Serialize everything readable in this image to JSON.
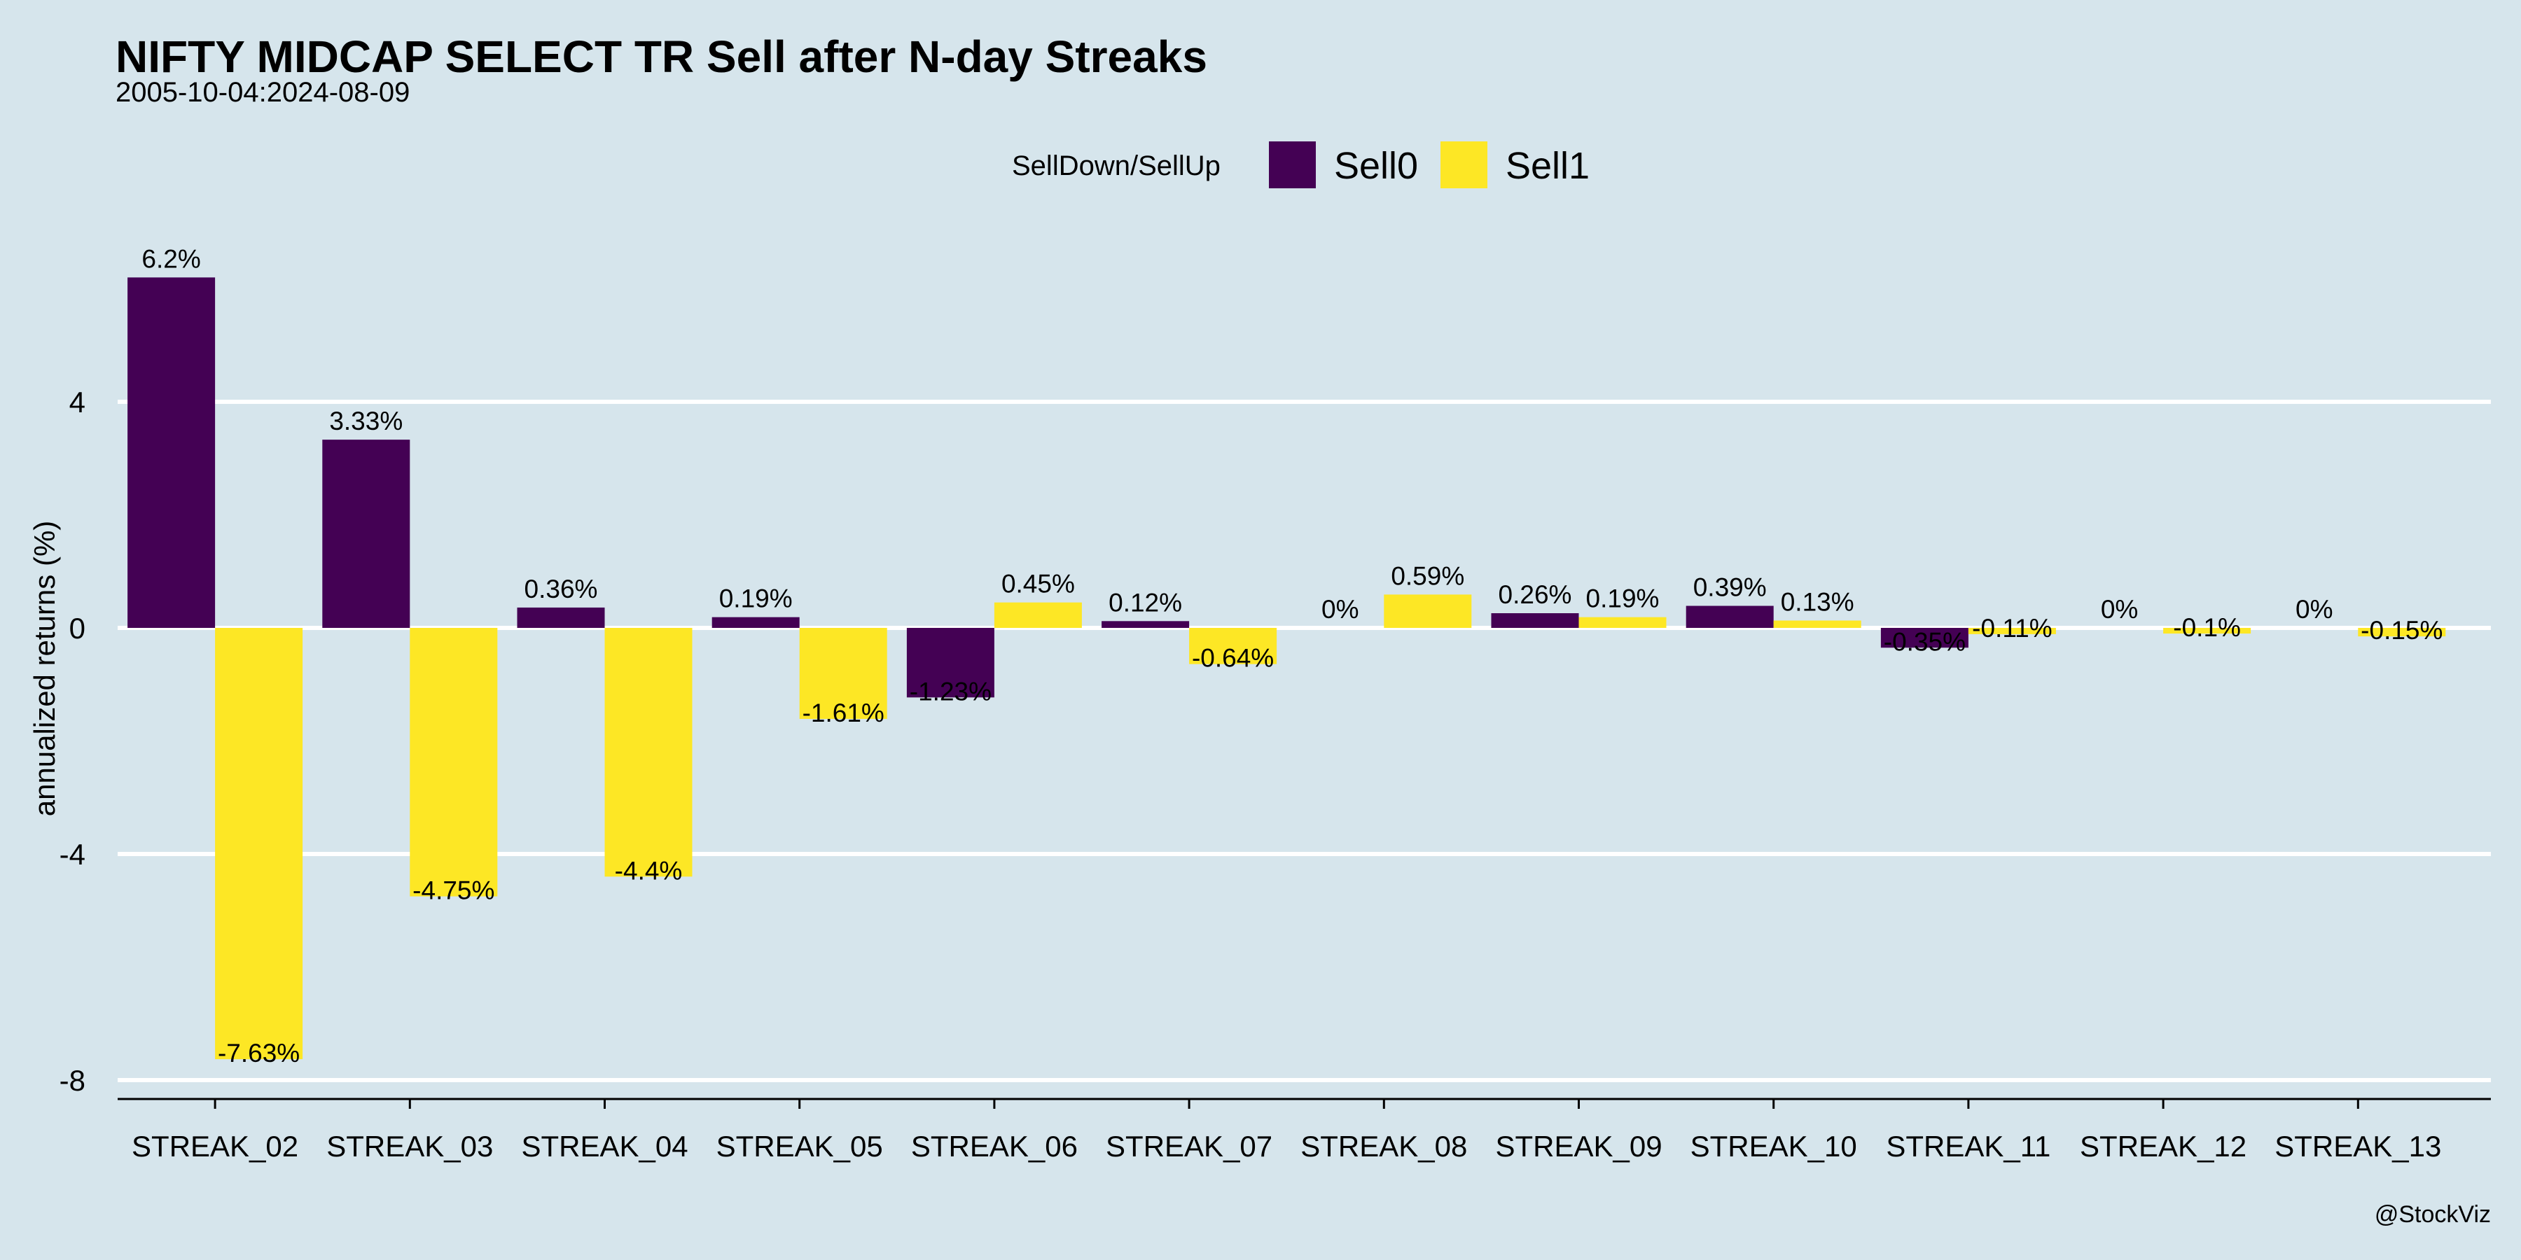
{
  "chart_data": {
    "type": "bar",
    "title": "NIFTY MIDCAP SELECT TR Sell after N-day Streaks",
    "subtitle": "2005-10-04:2024-08-09",
    "xlabel": "",
    "ylabel": "annualized returns (%)",
    "ylim": [
      -8.3,
      7.0
    ],
    "yticks": [
      -8,
      -4,
      0,
      4
    ],
    "grid": true,
    "legend": {
      "title": "SellDown/SellUp",
      "position": "top"
    },
    "categories": [
      "STREAK_02",
      "STREAK_03",
      "STREAK_04",
      "STREAK_05",
      "STREAK_06",
      "STREAK_07",
      "STREAK_08",
      "STREAK_09",
      "STREAK_10",
      "STREAK_11",
      "STREAK_12",
      "STREAK_13"
    ],
    "series": [
      {
        "name": "Sell0",
        "color": "#440154",
        "values": [
          6.2,
          3.33,
          0.36,
          0.19,
          -1.23,
          0.12,
          0,
          0.26,
          0.39,
          -0.35,
          0,
          0
        ],
        "labels": [
          "6.2%",
          "3.33%",
          "0.36%",
          "0.19%",
          "-1.23%",
          "0.12%",
          "0%",
          "0.26%",
          "0.39%",
          "-0.35%",
          "0%",
          "0%"
        ]
      },
      {
        "name": "Sell1",
        "color": "#fde725",
        "values": [
          -7.63,
          -4.75,
          -4.4,
          -1.61,
          0.45,
          -0.64,
          0.59,
          0.19,
          0.13,
          -0.11,
          -0.1,
          -0.15
        ],
        "labels": [
          "-7.63%",
          "-4.75%",
          "-4.4%",
          "-1.61%",
          "0.45%",
          "-0.64%",
          "0.59%",
          "0.19%",
          "0.13%",
          "-0.11%",
          "-0.1%",
          "-0.15%"
        ]
      }
    ],
    "caption": "@StockViz"
  }
}
